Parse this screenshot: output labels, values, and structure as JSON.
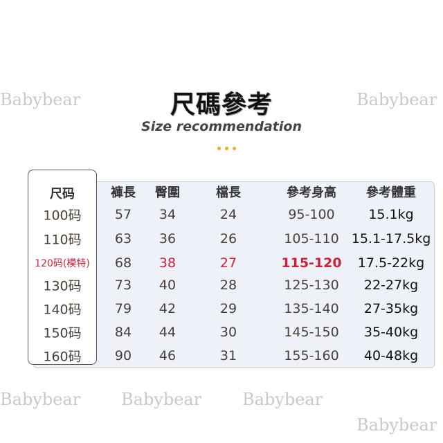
{
  "watermark": "Babybear",
  "title": "尺碼參考",
  "subtitle": "Size recommendation",
  "table": {
    "headers": [
      "尺码",
      "褲長",
      "臀圍",
      "檔長",
      "參考身高",
      "參考體重"
    ],
    "rows": [
      [
        "100码",
        "57",
        "34",
        "24",
        "95-100",
        "15.1kg"
      ],
      [
        "110码",
        "63",
        "36",
        "26",
        "105-110",
        "15.1-17.5kg"
      ],
      [
        "120码(模特)",
        "68",
        "38",
        "27",
        "115-120",
        "17.5-22kg"
      ],
      [
        "130码",
        "73",
        "40",
        "28",
        "125-130",
        "22-27kg"
      ],
      [
        "140码",
        "79",
        "42",
        "29",
        "135-140",
        "27-35kg"
      ],
      [
        "150码",
        "84",
        "44",
        "30",
        "145-150",
        "35-40kg"
      ],
      [
        "160码",
        "90",
        "46",
        "31",
        "155-160",
        "40-48kg"
      ]
    ],
    "highlight_row": 2,
    "highlight_color": "#d0203a"
  }
}
